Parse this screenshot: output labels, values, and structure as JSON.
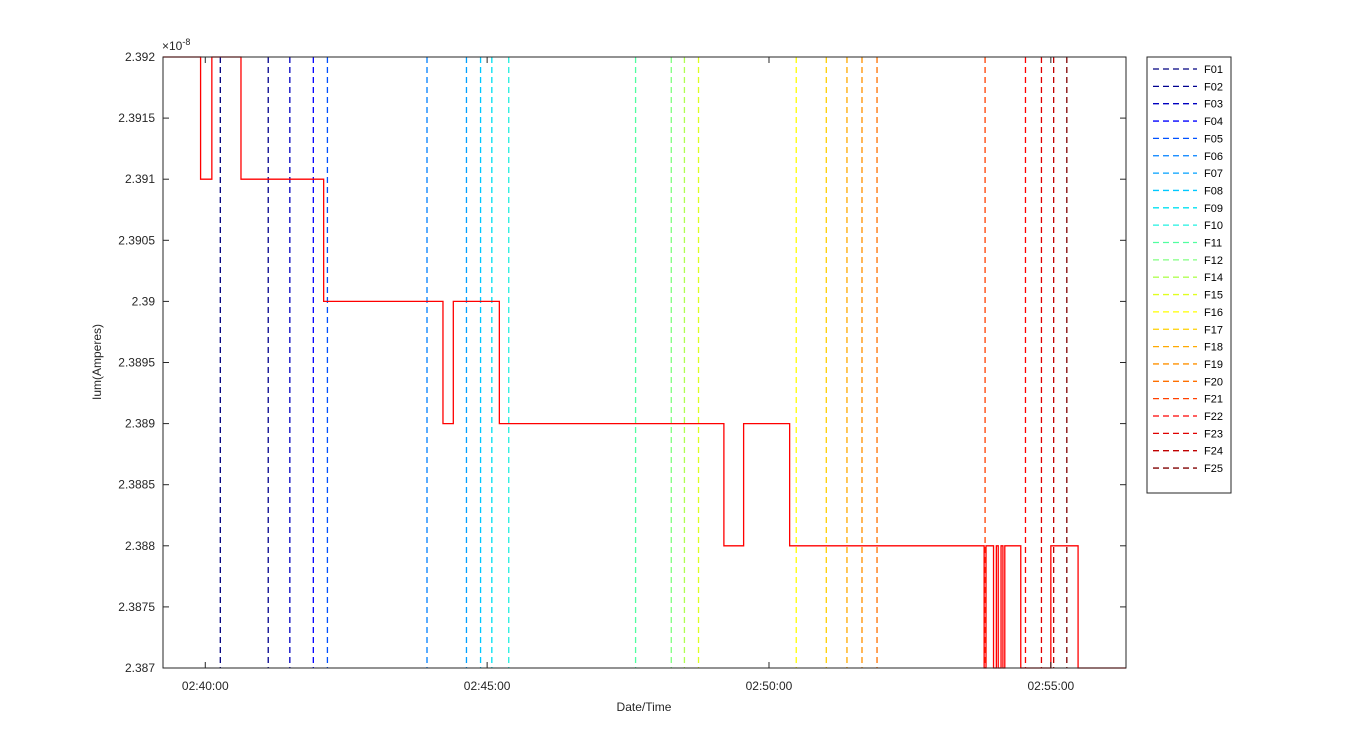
{
  "chart_data": {
    "type": "line",
    "xlabel": "Date/Time",
    "ylabel": "Ium(Amperes)",
    "exponent_label": "×10^-8",
    "exponent_base": "×10",
    "exponent_power": "-8",
    "x_ticks": [
      "02:40:00",
      "02:45:00",
      "02:50:00",
      "02:55:00"
    ],
    "x_range": [
      "02:39:15",
      "02:56:20"
    ],
    "y_ticks": [
      "2.387",
      "2.3875",
      "2.388",
      "2.3885",
      "2.389",
      "2.3895",
      "2.39",
      "2.3905",
      "2.391",
      "2.3915",
      "2.392"
    ],
    "ylim": [
      2.387,
      2.392
    ],
    "y_scale_factor": 1e-08,
    "grid": false,
    "legend_position": "outside-right",
    "series": [
      {
        "name": "",
        "color": "#ff0000",
        "style": "solid",
        "x": [
          "02:39:15",
          "02:39:55",
          "02:39:55",
          "02:39:57",
          "02:39:57",
          "02:40:07",
          "02:40:07",
          "02:40:08",
          "02:40:08",
          "02:40:38",
          "02:40:38",
          "02:42:06",
          "02:42:06",
          "02:43:43",
          "02:43:43",
          "02:44:13",
          "02:44:13",
          "02:44:24",
          "02:44:24",
          "02:45:13",
          "02:45:13",
          "02:49:12",
          "02:49:12",
          "02:49:33",
          "02:49:33",
          "02:50:22",
          "02:50:22",
          "02:53:49",
          "02:53:49",
          "02:53:51",
          "02:53:51",
          "02:53:59",
          "02:53:59",
          "02:54:02",
          "02:54:02",
          "02:54:04",
          "02:54:04",
          "02:54:07",
          "02:54:07",
          "02:54:09",
          "02:54:09",
          "02:54:11",
          "02:54:11",
          "02:54:15",
          "02:54:15",
          "02:54:28",
          "02:54:28",
          "02:55:00",
          "02:55:00",
          "02:55:29",
          "02:55:29",
          "02:56:20"
        ],
        "y": [
          2.392,
          2.392,
          2.391,
          2.391,
          2.391,
          2.391,
          2.392,
          2.392,
          2.392,
          2.392,
          2.391,
          2.391,
          2.39,
          2.39,
          2.39,
          2.39,
          2.389,
          2.389,
          2.39,
          2.39,
          2.389,
          2.389,
          2.388,
          2.388,
          2.389,
          2.389,
          2.388,
          2.388,
          2.387,
          2.387,
          2.388,
          2.388,
          2.387,
          2.387,
          2.388,
          2.388,
          2.387,
          2.387,
          2.388,
          2.388,
          2.387,
          2.387,
          2.388,
          2.388,
          2.388,
          2.388,
          2.387,
          2.387,
          2.388,
          2.388,
          2.387,
          2.387
        ]
      }
    ],
    "vlines": [
      {
        "name": "F01",
        "time": "02:40:16",
        "color": "#000080"
      },
      {
        "name": "F02",
        "time": "02:41:07",
        "color": "#00008f"
      },
      {
        "name": "F03",
        "time": "02:41:30",
        "color": "#0000c0"
      },
      {
        "name": "F04",
        "time": "02:41:55",
        "color": "#0000ff"
      },
      {
        "name": "F05",
        "time": "02:42:10",
        "color": "#0050ff"
      },
      {
        "name": "F06",
        "time": "02:43:56",
        "color": "#0080ff"
      },
      {
        "name": "F07",
        "time": "02:44:38",
        "color": "#00a0ff"
      },
      {
        "name": "F08",
        "time": "02:44:53",
        "color": "#00c8ff"
      },
      {
        "name": "F09",
        "time": "02:45:05",
        "color": "#00e0f0"
      },
      {
        "name": "F10",
        "time": "02:45:23",
        "color": "#20f0e0"
      },
      {
        "name": "F11",
        "time": "02:47:38",
        "color": "#50ffa0"
      },
      {
        "name": "F12",
        "time": "02:48:16",
        "color": "#80ff80"
      },
      {
        "name": "F14",
        "time": "02:48:30",
        "color": "#b0ff50"
      },
      {
        "name": "F15",
        "time": "02:48:45",
        "color": "#e0ff20"
      },
      {
        "name": "F16",
        "time": "02:50:29",
        "color": "#ffff00"
      },
      {
        "name": "F17",
        "time": "02:51:01",
        "color": "#ffd000"
      },
      {
        "name": "F18",
        "time": "02:51:23",
        "color": "#ffaa00"
      },
      {
        "name": "F19",
        "time": "02:51:39",
        "color": "#ff9000"
      },
      {
        "name": "F20",
        "time": "02:51:55",
        "color": "#ff7000"
      },
      {
        "name": "F21",
        "time": "02:53:50",
        "color": "#ff4000"
      },
      {
        "name": "F22",
        "time": "02:54:33",
        "color": "#ff0000"
      },
      {
        "name": "F23",
        "time": "02:54:50",
        "color": "#e00000"
      },
      {
        "name": "F24",
        "time": "02:55:03",
        "color": "#c00000"
      },
      {
        "name": "F25",
        "time": "02:55:17",
        "color": "#800000"
      }
    ]
  }
}
